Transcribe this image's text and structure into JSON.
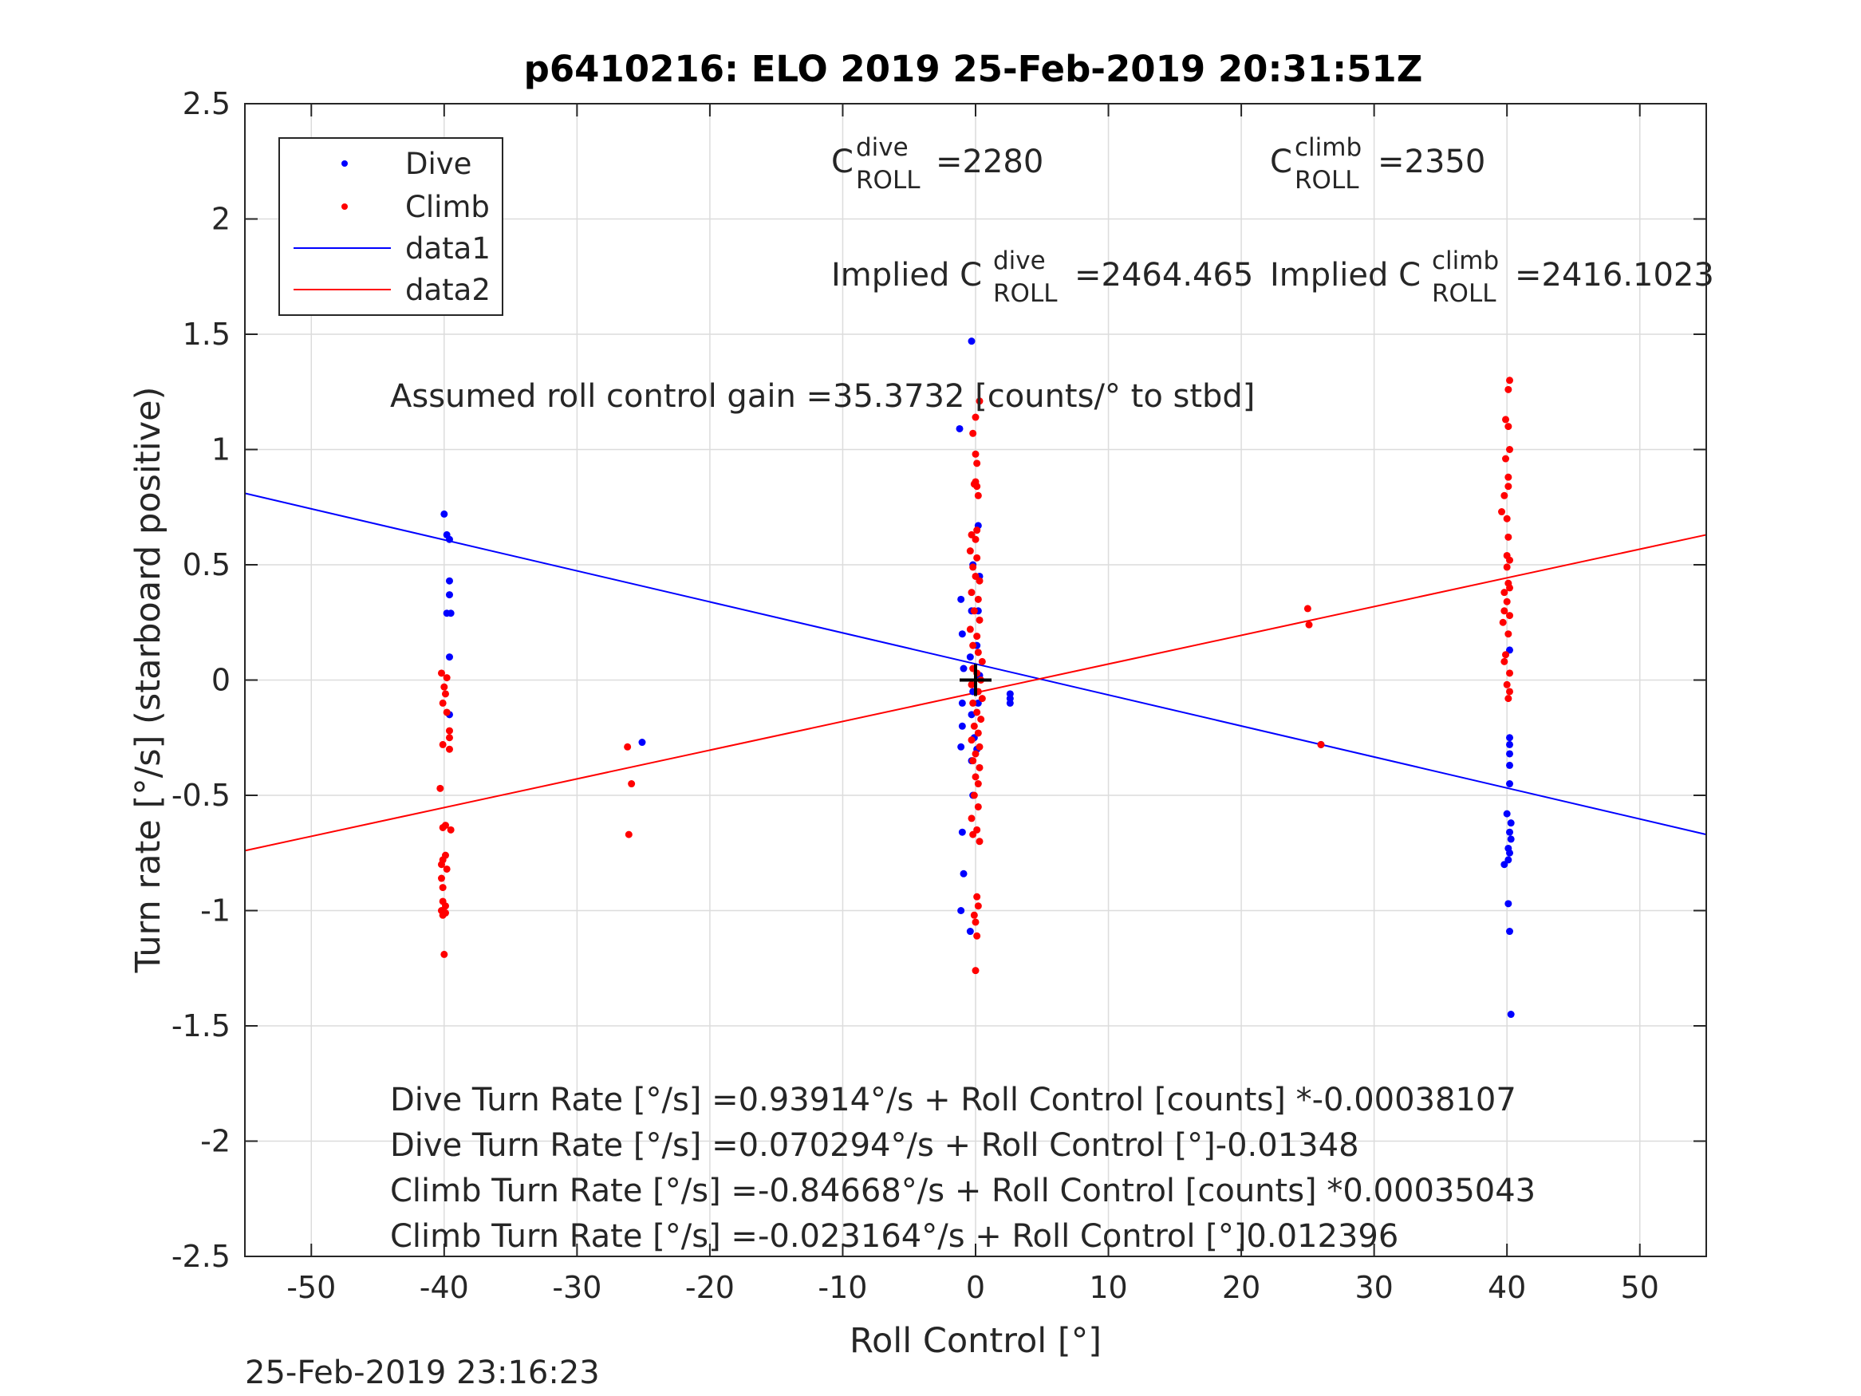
{
  "chart_data": {
    "type": "scatter",
    "title": "p6410216: ELO 2019 25-Feb-2019 20:31:51Z",
    "xlabel": "Roll Control [°]",
    "ylabel": "Turn rate [°/s] (starboard positive)",
    "xlim": [
      -55,
      55
    ],
    "ylim": [
      -2.5,
      2.5
    ],
    "xticks": [
      -50,
      -40,
      -30,
      -20,
      -10,
      0,
      10,
      20,
      30,
      40,
      50
    ],
    "yticks": [
      -2.5,
      -2,
      -1.5,
      -1,
      -0.5,
      0,
      0.5,
      1,
      1.5,
      2,
      2.5
    ],
    "xtick_labels": [
      "-50",
      "-40",
      "-30",
      "-20",
      "-10",
      "0",
      "10",
      "20",
      "30",
      "40",
      "50"
    ],
    "ytick_labels": [
      "-2.5",
      "-2",
      "-1.5",
      "-1",
      "-0.5",
      "0",
      "0.5",
      "1",
      "1.5",
      "2",
      "2.5"
    ],
    "grid": true,
    "legend_placement": "top-left",
    "legend": [
      {
        "label": "Dive",
        "kind": "dot",
        "color": "#0000ff"
      },
      {
        "label": "Climb",
        "kind": "dot",
        "color": "#ff0000"
      },
      {
        "label": "data1",
        "kind": "line",
        "color": "#0000ff"
      },
      {
        "label": "data2",
        "kind": "line",
        "color": "#ff0000"
      }
    ],
    "series": [
      {
        "name": "Dive",
        "kind": "scatter",
        "color": "#0000ff",
        "points": [
          [
            -40,
            0.72
          ],
          [
            -39.8,
            0.63
          ],
          [
            -39.6,
            0.61
          ],
          [
            -39.6,
            0.43
          ],
          [
            -39.6,
            0.37
          ],
          [
            -39.8,
            0.29
          ],
          [
            -39.5,
            0.29
          ],
          [
            -39.6,
            0.1
          ],
          [
            -39.6,
            -0.15
          ],
          [
            -25.1,
            -0.27
          ],
          [
            -1.2,
            1.09
          ],
          [
            -1.1,
            0.35
          ],
          [
            -1.0,
            0.2
          ],
          [
            -0.9,
            0.05
          ],
          [
            -1.0,
            -0.1
          ],
          [
            -1.0,
            -0.2
          ],
          [
            -1.1,
            -0.29
          ],
          [
            -1.0,
            -0.66
          ],
          [
            -0.9,
            -0.84
          ],
          [
            -1.1,
            -1.0
          ],
          [
            -0.4,
            -1.09
          ],
          [
            -0.3,
            1.47
          ],
          [
            -0.2,
            0.5
          ],
          [
            -0.3,
            0.3
          ],
          [
            -0.4,
            0.1
          ],
          [
            -0.2,
            -0.05
          ],
          [
            -0.3,
            -0.15
          ],
          [
            -0.1,
            -0.25
          ],
          [
            -0.3,
            -0.35
          ],
          [
            -0.2,
            -0.5
          ],
          [
            0.2,
            0.67
          ],
          [
            0.3,
            0.45
          ],
          [
            0.2,
            0.3
          ],
          [
            0.1,
            0.15
          ],
          [
            0.3,
            0.02
          ],
          [
            0.2,
            -0.1
          ],
          [
            0.1,
            -0.3
          ],
          [
            2.6,
            -0.06
          ],
          [
            2.6,
            -0.08
          ],
          [
            2.6,
            -0.1
          ],
          [
            26,
            -0.28
          ],
          [
            39.8,
            -0.8
          ],
          [
            40.1,
            -0.78
          ],
          [
            40.2,
            0.13
          ],
          [
            40.2,
            -0.25
          ],
          [
            40.2,
            -0.28
          ],
          [
            40.2,
            -0.32
          ],
          [
            40.2,
            -0.37
          ],
          [
            40.2,
            -0.45
          ],
          [
            40.0,
            -0.58
          ],
          [
            40.3,
            -0.62
          ],
          [
            40.2,
            -0.66
          ],
          [
            40.3,
            -0.69
          ],
          [
            40.1,
            -0.73
          ],
          [
            40.2,
            -0.75
          ],
          [
            40.1,
            -0.97
          ],
          [
            40.2,
            -1.09
          ],
          [
            40.3,
            -1.45
          ]
        ]
      },
      {
        "name": "Climb",
        "kind": "scatter",
        "color": "#ff0000",
        "points": [
          [
            -40.2,
            0.03
          ],
          [
            -39.8,
            0.01
          ],
          [
            -40,
            -0.03
          ],
          [
            -39.9,
            -0.06
          ],
          [
            -40.1,
            -0.1
          ],
          [
            -39.8,
            -0.14
          ],
          [
            -39.6,
            -0.22
          ],
          [
            -39.6,
            -0.25
          ],
          [
            -40.1,
            -0.28
          ],
          [
            -39.6,
            -0.3
          ],
          [
            -40.3,
            -0.47
          ],
          [
            -39.9,
            -0.63
          ],
          [
            -40.1,
            -0.64
          ],
          [
            -39.5,
            -0.65
          ],
          [
            -39.9,
            -0.76
          ],
          [
            -40.1,
            -0.78
          ],
          [
            -40.2,
            -0.8
          ],
          [
            -39.8,
            -0.82
          ],
          [
            -40.2,
            -0.86
          ],
          [
            -40.1,
            -0.9
          ],
          [
            -40.1,
            -0.96
          ],
          [
            -39.9,
            -0.98
          ],
          [
            -40.2,
            -1.0
          ],
          [
            -40.1,
            -1.02
          ],
          [
            -39.9,
            -1.01
          ],
          [
            -40,
            -1.19
          ],
          [
            -26.2,
            -0.29
          ],
          [
            -25.9,
            -0.45
          ],
          [
            -26.1,
            -0.67
          ],
          [
            0.3,
            1.21
          ],
          [
            0.0,
            1.14
          ],
          [
            -0.2,
            1.07
          ],
          [
            0.0,
            0.98
          ],
          [
            0.1,
            0.94
          ],
          [
            0.0,
            0.86
          ],
          [
            -0.1,
            0.85
          ],
          [
            0.1,
            0.84
          ],
          [
            0.2,
            0.8
          ],
          [
            0.1,
            0.65
          ],
          [
            -0.3,
            0.63
          ],
          [
            0.0,
            0.61
          ],
          [
            -0.4,
            0.56
          ],
          [
            0.1,
            0.53
          ],
          [
            -0.2,
            0.49
          ],
          [
            0.0,
            0.45
          ],
          [
            0.3,
            0.43
          ],
          [
            -0.3,
            0.38
          ],
          [
            0.2,
            0.35
          ],
          [
            -0.1,
            0.3
          ],
          [
            0.3,
            0.26
          ],
          [
            -0.4,
            0.22
          ],
          [
            0.1,
            0.19
          ],
          [
            -0.2,
            0.15
          ],
          [
            0.2,
            0.12
          ],
          [
            0.5,
            0.08
          ],
          [
            -0.2,
            0.05
          ],
          [
            0.1,
            0.03
          ],
          [
            0.4,
            0.0
          ],
          [
            -0.3,
            -0.02
          ],
          [
            0.2,
            -0.05
          ],
          [
            0.5,
            -0.08
          ],
          [
            -0.2,
            -0.1
          ],
          [
            0.1,
            -0.14
          ],
          [
            0.4,
            -0.17
          ],
          [
            -0.1,
            -0.2
          ],
          [
            0.2,
            -0.23
          ],
          [
            -0.3,
            -0.26
          ],
          [
            0.3,
            -0.29
          ],
          [
            0.0,
            -0.32
          ],
          [
            -0.2,
            -0.35
          ],
          [
            0.3,
            -0.38
          ],
          [
            0.0,
            -0.42
          ],
          [
            0.2,
            -0.45
          ],
          [
            -0.1,
            -0.5
          ],
          [
            0.2,
            -0.55
          ],
          [
            -0.3,
            -0.6
          ],
          [
            0.1,
            -0.65
          ],
          [
            -0.2,
            -0.67
          ],
          [
            0.3,
            -0.7
          ],
          [
            0.1,
            -0.94
          ],
          [
            0.2,
            -0.98
          ],
          [
            -0.1,
            -1.02
          ],
          [
            0.0,
            -1.05
          ],
          [
            0.1,
            -1.11
          ],
          [
            0.0,
            -1.26
          ],
          [
            25,
            0.31
          ],
          [
            25.1,
            0.24
          ],
          [
            26,
            -0.28
          ],
          [
            40.2,
            1.3
          ],
          [
            40.1,
            1.26
          ],
          [
            39.9,
            1.13
          ],
          [
            40.1,
            1.1
          ],
          [
            40.2,
            1.0
          ],
          [
            39.9,
            0.96
          ],
          [
            40.1,
            0.88
          ],
          [
            40.1,
            0.84
          ],
          [
            39.8,
            0.8
          ],
          [
            39.6,
            0.73
          ],
          [
            40.0,
            0.7
          ],
          [
            40.1,
            0.62
          ],
          [
            40.0,
            0.54
          ],
          [
            40.2,
            0.52
          ],
          [
            40.0,
            0.49
          ],
          [
            40.1,
            0.42
          ],
          [
            40.2,
            0.4
          ],
          [
            39.8,
            0.38
          ],
          [
            40.0,
            0.34
          ],
          [
            39.8,
            0.3
          ],
          [
            40.2,
            0.28
          ],
          [
            39.7,
            0.25
          ],
          [
            40.1,
            0.2
          ],
          [
            39.9,
            0.11
          ],
          [
            39.8,
            0.08
          ],
          [
            40.2,
            0.03
          ],
          [
            40.0,
            -0.02
          ],
          [
            40.2,
            -0.05
          ],
          [
            40.1,
            -0.08
          ]
        ]
      },
      {
        "name": "data1",
        "kind": "line",
        "color": "#0000ff",
        "points": [
          [
            -55,
            0.81
          ],
          [
            55,
            -0.67
          ]
        ]
      },
      {
        "name": "data2",
        "kind": "line",
        "color": "#ff0000",
        "points": [
          [
            -55,
            -0.74
          ],
          [
            55,
            0.63
          ]
        ]
      }
    ],
    "center_marker": {
      "x": 0,
      "y": 0,
      "symbol": "+"
    },
    "annotations": {
      "c_dive_base": "C",
      "c_dive_sup": "dive",
      "c_dive_sub": "ROLL",
      "c_dive_value": "=2280",
      "c_climb_base": "C",
      "c_climb_sup": "climb",
      "c_climb_sub": "ROLL",
      "c_climb_value": "=2350",
      "implied_dive_prefix": "Implied C",
      "implied_dive_sup": "dive",
      "implied_dive_sub": "ROLL",
      "implied_dive_value": "=2464.465",
      "implied_climb_prefix": "Implied C",
      "implied_climb_sup": "climb",
      "implied_climb_sub": "ROLL",
      "implied_climb_value": "=2416.1023",
      "gain": "Assumed roll control gain =35.3732 [counts/° to stbd]",
      "eq1": "Dive Turn Rate [°/s] =0.93914°/s + Roll Control [counts] *-0.00038107",
      "eq2": "Dive Turn Rate [°/s] =0.070294°/s + Roll Control [°]-0.01348",
      "eq3": "Climb Turn Rate [°/s] =-0.84668°/s + Roll Control [counts] *0.00035043",
      "eq4": "Climb Turn Rate [°/s] =-0.023164°/s + Roll Control [°]0.012396"
    },
    "footer_timestamp": "25-Feb-2019 23:16:23"
  }
}
